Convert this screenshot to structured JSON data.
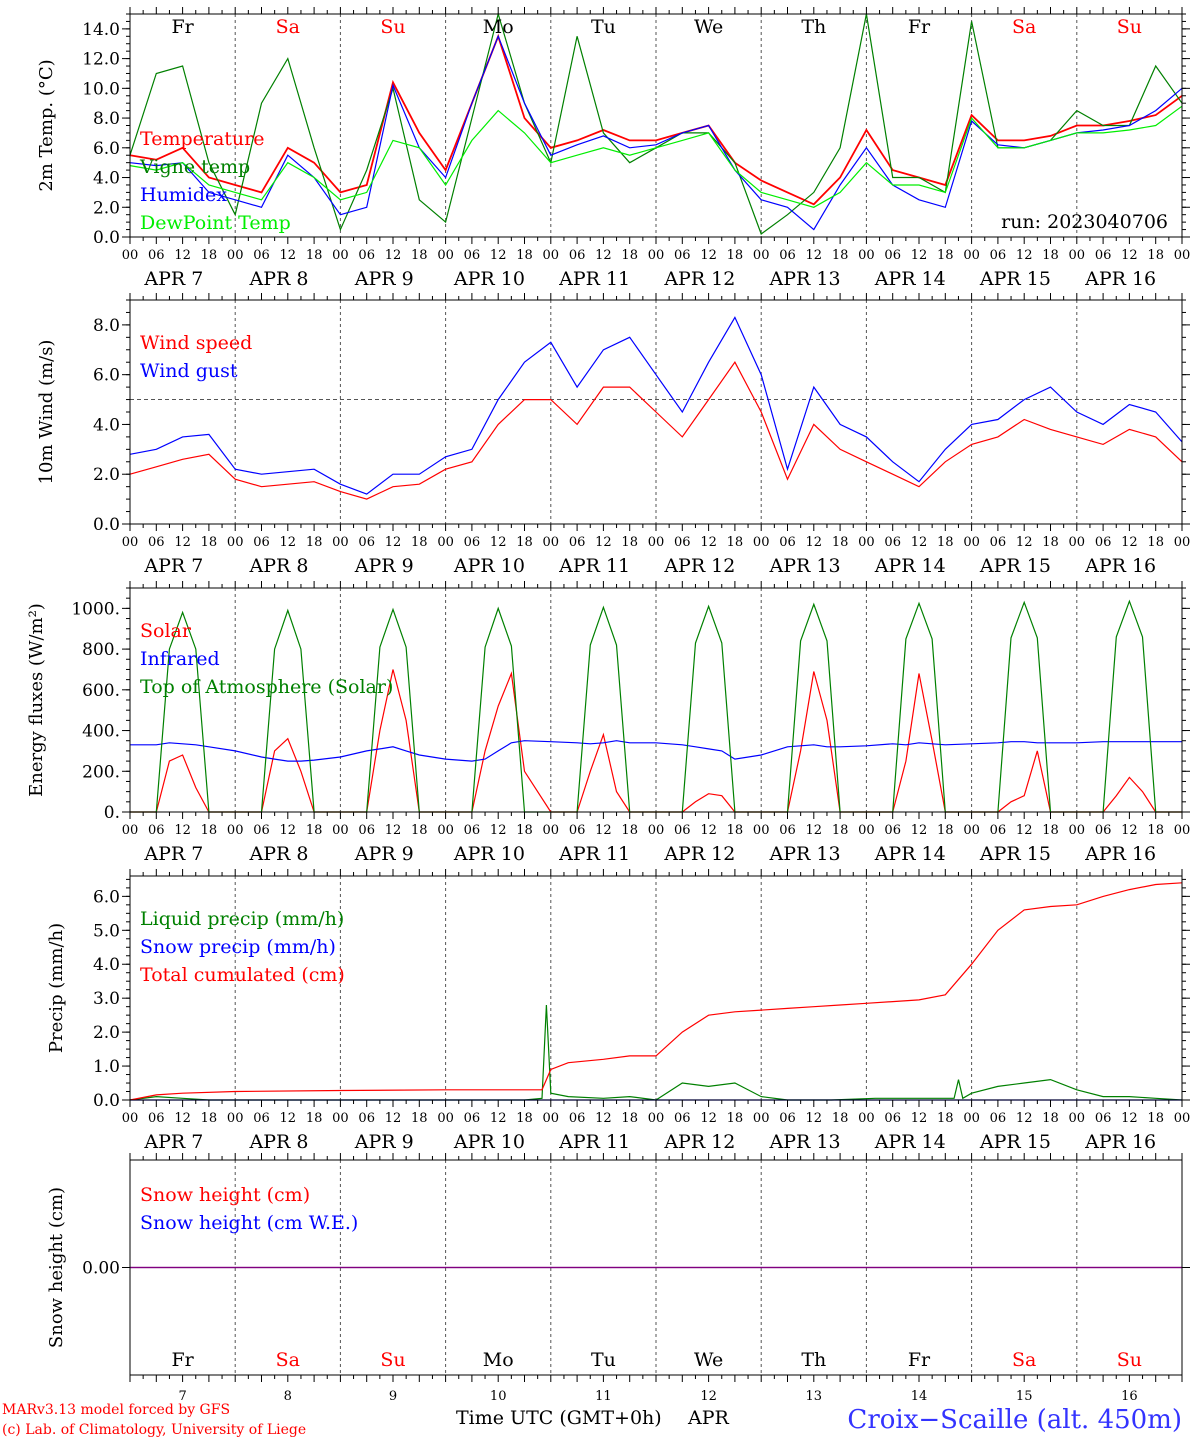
{
  "footer": {
    "model": "MARv3.13 model forced by GFS",
    "lab": "(c) Lab. of Climatology, University of Liege",
    "station": "Croix−Scaille (alt. 450m)",
    "xlabel": "Time UTC (GMT+0h)",
    "month": "APR"
  },
  "colors": {
    "red": "#ff0000",
    "green": "#008000",
    "blue": "#0000ff",
    "light_green": "#00ee00",
    "weekend": "#ff0000",
    "weekday": "#000000",
    "snow_line": "#800080"
  },
  "days": {
    "dates": [
      "7",
      "8",
      "9",
      "10",
      "11",
      "12",
      "13",
      "14",
      "15",
      "16"
    ],
    "weekday_top": [
      "Fr",
      "Sa",
      "Su",
      "Mo",
      "Tu",
      "We",
      "Th",
      "Fr",
      "Sa",
      "Su"
    ],
    "weekend": [
      false,
      true,
      true,
      false,
      false,
      false,
      false,
      false,
      true,
      true
    ],
    "axis_dates": [
      "APR 7",
      "APR 8",
      "APR 9",
      "APR 10",
      "APR 11",
      "APR 12",
      "APR 13",
      "APR 14",
      "APR 15",
      "APR 16"
    ],
    "hour_ticks": [
      "00",
      "06",
      "12",
      "18"
    ],
    "final_tick": "00"
  },
  "chart_data": [
    {
      "id": "temp",
      "type": "line",
      "ylabel": "2m Temp. (°C)",
      "ylim": [
        0,
        15
      ],
      "yticks": [
        0,
        2,
        4,
        6,
        8,
        10,
        12,
        14
      ],
      "ytick_labels": [
        "0.0",
        "2.0",
        "4.0",
        "6.0",
        "8.0",
        "10.0",
        "12.0",
        "14.0"
      ],
      "annotation": "run: 2023040706",
      "x": [
        0,
        6,
        12,
        18,
        24,
        30,
        36,
        42,
        48,
        54,
        60,
        66,
        72,
        78,
        84,
        90,
        96,
        102,
        108,
        114,
        120,
        126,
        132,
        138,
        144,
        150,
        156,
        162,
        168,
        174,
        180,
        186,
        192,
        198,
        204,
        210,
        216,
        222,
        228,
        234,
        240
      ],
      "series": [
        {
          "name": "Temperature",
          "color": "#ff0000",
          "values": [
            5.5,
            5.2,
            6.0,
            4.0,
            3.5,
            3.0,
            6.0,
            5.0,
            3.0,
            3.5,
            10.4,
            7.0,
            4.5,
            9.0,
            13.5,
            8.0,
            6.0,
            6.5,
            7.2,
            6.5,
            6.5,
            7.0,
            7.5,
            5.0,
            3.8,
            3.0,
            2.2,
            4.0,
            7.2,
            4.5,
            4.0,
            3.5,
            8.2,
            6.5,
            6.5,
            6.8,
            7.5,
            7.5,
            7.8,
            8.2,
            9.5
          ]
        },
        {
          "name": "Vigne temp",
          "color": "#008000",
          "values": [
            5.5,
            11.0,
            11.5,
            5.0,
            1.5,
            9.0,
            12.0,
            6.0,
            0.5,
            4.5,
            10.0,
            2.5,
            1.0,
            8.0,
            15.0,
            9.0,
            5.0,
            13.5,
            7.0,
            5.0,
            6.0,
            7.0,
            7.0,
            5.0,
            0.2,
            1.5,
            3.0,
            6.0,
            15.0,
            4.0,
            4.0,
            3.0,
            14.5,
            6.0,
            6.0,
            6.5,
            8.5,
            7.5,
            7.5,
            11.5,
            9.0
          ]
        },
        {
          "name": "Humidex",
          "color": "#0000ff",
          "values": [
            5.0,
            4.8,
            5.0,
            3.0,
            2.5,
            2.0,
            5.5,
            4.0,
            1.5,
            2.0,
            10.2,
            6.0,
            4.0,
            9.0,
            13.5,
            9.0,
            5.5,
            6.2,
            6.8,
            6.0,
            6.2,
            7.0,
            7.5,
            4.5,
            2.5,
            2.0,
            0.5,
            3.5,
            6.0,
            3.5,
            2.5,
            2.0,
            7.8,
            6.2,
            6.0,
            6.5,
            7.0,
            7.2,
            7.5,
            8.5,
            10.0
          ]
        },
        {
          "name": "DewPoint Temp",
          "color": "#00ee00",
          "values": [
            4.8,
            4.5,
            5.0,
            3.5,
            3.0,
            2.5,
            5.0,
            4.0,
            2.5,
            3.0,
            6.5,
            6.0,
            3.5,
            6.5,
            8.5,
            7.0,
            5.0,
            5.5,
            6.0,
            5.5,
            6.0,
            6.5,
            7.0,
            4.5,
            3.0,
            2.5,
            2.0,
            3.0,
            5.0,
            3.5,
            3.5,
            3.0,
            8.0,
            6.0,
            6.0,
            6.5,
            7.0,
            7.0,
            7.2,
            7.5,
            8.8
          ]
        }
      ]
    },
    {
      "id": "wind",
      "type": "line",
      "ylabel": "10m Wind (m/s)",
      "ylim": [
        0,
        9
      ],
      "yticks": [
        0,
        2,
        4,
        6,
        8
      ],
      "ytick_labels": [
        "0.0",
        "2.0",
        "4.0",
        "6.0",
        "8.0"
      ],
      "refline": 5,
      "x": [
        0,
        6,
        12,
        18,
        24,
        30,
        36,
        42,
        48,
        54,
        60,
        66,
        72,
        78,
        84,
        90,
        96,
        102,
        108,
        114,
        120,
        126,
        132,
        138,
        144,
        150,
        156,
        162,
        168,
        174,
        180,
        186,
        192,
        198,
        204,
        210,
        216,
        222,
        228,
        234,
        240
      ],
      "series": [
        {
          "name": "Wind speed",
          "color": "#ff0000",
          "values": [
            2.0,
            2.3,
            2.6,
            2.8,
            1.8,
            1.5,
            1.6,
            1.7,
            1.3,
            1.0,
            1.5,
            1.6,
            2.2,
            2.5,
            4.0,
            5.0,
            5.0,
            4.0,
            5.5,
            5.5,
            4.5,
            3.5,
            5.0,
            6.5,
            4.5,
            1.8,
            4.0,
            3.0,
            2.5,
            2.0,
            1.5,
            2.5,
            3.2,
            3.5,
            4.2,
            3.8,
            3.5,
            3.2,
            3.8,
            3.5,
            2.5
          ]
        },
        {
          "name": "Wind gust",
          "color": "#0000ff",
          "values": [
            2.8,
            3.0,
            3.5,
            3.6,
            2.2,
            2.0,
            2.1,
            2.2,
            1.6,
            1.2,
            2.0,
            2.0,
            2.7,
            3.0,
            5.0,
            6.5,
            7.3,
            5.5,
            7.0,
            7.5,
            6.0,
            4.5,
            6.5,
            8.3,
            6.0,
            2.2,
            5.5,
            4.0,
            3.5,
            2.5,
            1.7,
            3.0,
            4.0,
            4.2,
            5.0,
            5.5,
            4.5,
            4.0,
            4.8,
            4.5,
            3.3
          ]
        }
      ]
    },
    {
      "id": "energy",
      "type": "line",
      "ylabel": "Energy fluxes (W/m²)",
      "ylim": [
        0,
        1100
      ],
      "yticks": [
        0,
        200,
        400,
        600,
        800,
        1000
      ],
      "ytick_labels": [
        "0.",
        "200.",
        "400.",
        "600.",
        "800.",
        "1000."
      ],
      "x": [
        0,
        6,
        9,
        12,
        15,
        18,
        24,
        30,
        33,
        36,
        39,
        42,
        48,
        54,
        57,
        60,
        63,
        66,
        72,
        78,
        81,
        84,
        87,
        90,
        96,
        102,
        105,
        108,
        111,
        114,
        120,
        126,
        129,
        132,
        135,
        138,
        144,
        150,
        153,
        156,
        159,
        162,
        168,
        174,
        177,
        180,
        183,
        186,
        192,
        198,
        201,
        204,
        207,
        210,
        216,
        222,
        225,
        228,
        231,
        234,
        240
      ],
      "series": [
        {
          "name": "Solar",
          "color": "#ff0000",
          "values": [
            0,
            0,
            250,
            280,
            120,
            0,
            0,
            0,
            300,
            360,
            200,
            0,
            0,
            0,
            400,
            700,
            450,
            0,
            0,
            0,
            300,
            520,
            680,
            200,
            0,
            0,
            200,
            380,
            100,
            0,
            0,
            0,
            50,
            90,
            80,
            0,
            0,
            0,
            300,
            690,
            450,
            0,
            0,
            0,
            250,
            680,
            350,
            0,
            0,
            0,
            50,
            80,
            300,
            0,
            0,
            0,
            80,
            170,
            100,
            0,
            0
          ]
        },
        {
          "name": "Infrared",
          "color": "#0000ff",
          "values": [
            330,
            330,
            340,
            335,
            330,
            320,
            300,
            270,
            260,
            250,
            250,
            255,
            270,
            300,
            310,
            320,
            300,
            280,
            260,
            250,
            260,
            300,
            340,
            350,
            345,
            340,
            335,
            340,
            350,
            340,
            340,
            330,
            320,
            310,
            300,
            260,
            280,
            320,
            325,
            330,
            320,
            320,
            325,
            335,
            330,
            340,
            335,
            330,
            335,
            340,
            345,
            345,
            340,
            340,
            340,
            345,
            345,
            345,
            345,
            345,
            345
          ]
        },
        {
          "name": "Top of Atmosphere (Solar)",
          "color": "#008000",
          "values": [
            0,
            0,
            800,
            980,
            800,
            0,
            0,
            0,
            800,
            990,
            800,
            0,
            0,
            0,
            810,
            995,
            810,
            0,
            0,
            0,
            810,
            1000,
            815,
            0,
            0,
            0,
            820,
            1005,
            820,
            0,
            0,
            0,
            830,
            1010,
            830,
            0,
            0,
            0,
            840,
            1020,
            840,
            0,
            0,
            0,
            850,
            1025,
            850,
            0,
            0,
            0,
            855,
            1030,
            855,
            0,
            0,
            0,
            860,
            1035,
            860,
            0,
            0
          ]
        }
      ]
    },
    {
      "id": "precip",
      "type": "line",
      "ylabel": "Precip (mm/h)",
      "ylim": [
        0,
        6.6
      ],
      "yticks": [
        0,
        1,
        2,
        3,
        4,
        5,
        6
      ],
      "ytick_labels": [
        "0.0",
        "1.0",
        "2.0",
        "3.0",
        "4.0",
        "5.0",
        "6.0"
      ],
      "series": [
        {
          "name": "Liquid precip (mm/h)",
          "color": "#008000",
          "x": [
            0,
            6,
            12,
            18,
            24,
            48,
            72,
            90,
            94,
            95,
            96,
            100,
            108,
            114,
            120,
            126,
            132,
            138,
            144,
            150,
            160,
            170,
            180,
            188,
            189,
            190,
            192,
            198,
            204,
            210,
            216,
            222,
            228,
            234,
            240
          ],
          "values": [
            0.0,
            0.1,
            0.05,
            0.0,
            0.0,
            0.0,
            0.0,
            0.0,
            0.05,
            2.8,
            0.2,
            0.1,
            0.05,
            0.1,
            0.0,
            0.5,
            0.4,
            0.5,
            0.1,
            0.0,
            0.0,
            0.05,
            0.05,
            0.05,
            0.6,
            0.05,
            0.2,
            0.4,
            0.5,
            0.6,
            0.3,
            0.1,
            0.1,
            0.05,
            0.0
          ]
        },
        {
          "name": "Snow precip (mm/h)",
          "color": "#0000ff",
          "x": [
            0,
            240
          ],
          "values": [
            0,
            0
          ]
        },
        {
          "name": "Total cumulated (cm)",
          "color": "#ff0000",
          "x": [
            0,
            6,
            12,
            24,
            48,
            72,
            94,
            96,
            100,
            108,
            114,
            120,
            126,
            132,
            138,
            144,
            150,
            156,
            162,
            168,
            174,
            180,
            186,
            192,
            198,
            204,
            210,
            216,
            222,
            228,
            234,
            240
          ],
          "values": [
            0.0,
            0.15,
            0.2,
            0.25,
            0.28,
            0.3,
            0.3,
            0.9,
            1.1,
            1.2,
            1.3,
            1.3,
            2.0,
            2.5,
            2.6,
            2.65,
            2.7,
            2.75,
            2.8,
            2.85,
            2.9,
            2.95,
            3.1,
            4.0,
            5.0,
            5.6,
            5.7,
            5.75,
            6.0,
            6.2,
            6.35,
            6.4
          ]
        }
      ]
    },
    {
      "id": "snow",
      "type": "line",
      "ylabel": "Snow height (cm)",
      "ylim": [
        -1,
        1
      ],
      "yticks": [
        0
      ],
      "ytick_labels": [
        "0.00"
      ],
      "series": [
        {
          "name": "Snow height (cm)",
          "color": "#ff0000",
          "x": [
            0,
            240
          ],
          "values": [
            0,
            0
          ]
        },
        {
          "name": "Snow height (cm W.E.)",
          "color": "#0000ff",
          "x": [
            0,
            240
          ],
          "values": [
            0,
            0
          ]
        }
      ]
    }
  ]
}
